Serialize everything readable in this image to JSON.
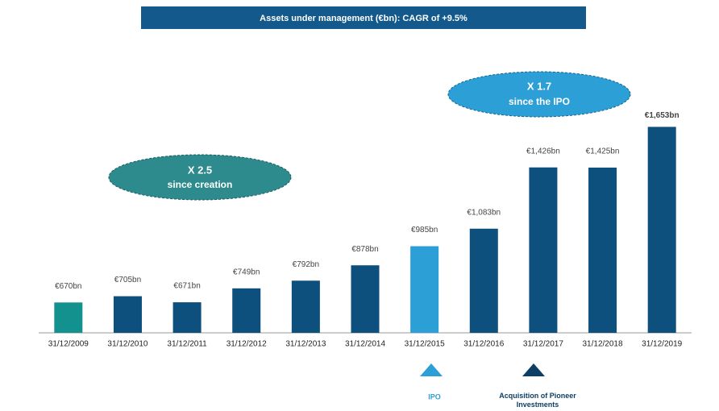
{
  "chart_data": {
    "type": "bar",
    "title": "Assets under management (€bn): CAGR of +9.5%",
    "categories": [
      "31/12/2009",
      "31/12/2010",
      "31/12/2011",
      "31/12/2012",
      "31/12/2013",
      "31/12/2014",
      "31/12/2015",
      "31/12/2016",
      "31/12/2017",
      "31/12/2018",
      "31/12/2019"
    ],
    "values": [
      670,
      705,
      671,
      749,
      792,
      878,
      985,
      1083,
      1426,
      1425,
      1653
    ],
    "value_labels": [
      "€670bn",
      "€705bn",
      "€671bn",
      "€749bn",
      "€792bn",
      "€878bn",
      "€985bn",
      "€1,083bn",
      "€1,426bn",
      "€1,425bn",
      "€1,653bn"
    ],
    "colors": [
      "#13918f",
      "#0d4f7d",
      "#0d4f7d",
      "#0d4f7d",
      "#0d4f7d",
      "#0d4f7d",
      "#2c9fd6",
      "#0d4f7d",
      "#0d4f7d",
      "#0d4f7d",
      "#0d4f7d"
    ],
    "ylim": [
      500,
      1700
    ],
    "annotations": [
      {
        "lines": [
          "X 2.5",
          "since creation"
        ]
      },
      {
        "lines": [
          "X 1.7",
          "since the IPO"
        ]
      }
    ],
    "events": [
      {
        "label": "IPO"
      },
      {
        "label": "Acquisition of Pioneer Investments"
      }
    ]
  }
}
